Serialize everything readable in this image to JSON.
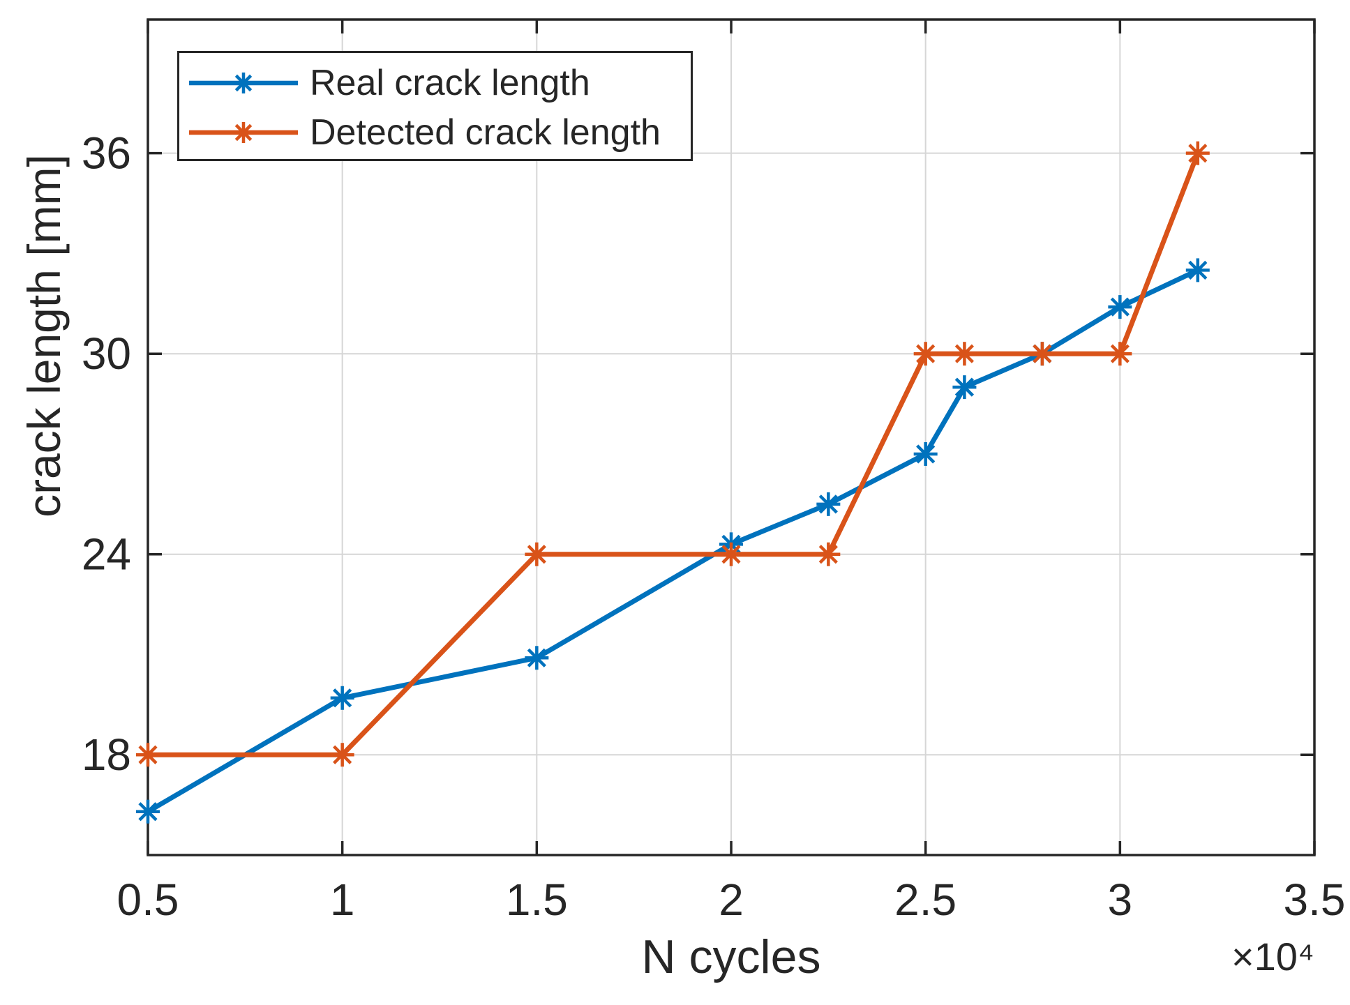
{
  "figure": {
    "background": "#ffffff",
    "axis_color": "#262626",
    "grid_color": "#d6d6d6"
  },
  "chart_data": {
    "type": "line",
    "title": "",
    "xlabel": "N cycles",
    "ylabel": "crack length [mm]",
    "x_axis_multiplier": "×10⁴",
    "xlim": [
      0.5,
      3.5
    ],
    "ylim": [
      15,
      40
    ],
    "x_ticks": [
      0.5,
      1,
      1.5,
      2,
      2.5,
      3,
      3.5
    ],
    "x_tick_labels": [
      "0.5",
      "1",
      "1.5",
      "2",
      "2.5",
      "3",
      "3.5"
    ],
    "y_ticks": [
      18,
      24,
      30,
      36
    ],
    "y_tick_labels": [
      "18",
      "24",
      "30",
      "36"
    ],
    "grid": true,
    "legend_position": "top-left",
    "x": [
      0.5,
      1,
      1.5,
      2,
      2.25,
      2.5,
      2.6,
      2.8,
      3,
      3.2
    ],
    "series": [
      {
        "name": "Real crack length",
        "color": "#0072BD",
        "marker": "asterisk",
        "values": [
          16.3,
          19.7,
          20.9,
          24.3,
          25.5,
          27.0,
          29.0,
          30.0,
          31.4,
          32.5
        ]
      },
      {
        "name": "Detected crack length",
        "color": "#D95319",
        "marker": "asterisk",
        "values": [
          18,
          18,
          24,
          24,
          24,
          30,
          30,
          30,
          30,
          36
        ]
      }
    ]
  }
}
